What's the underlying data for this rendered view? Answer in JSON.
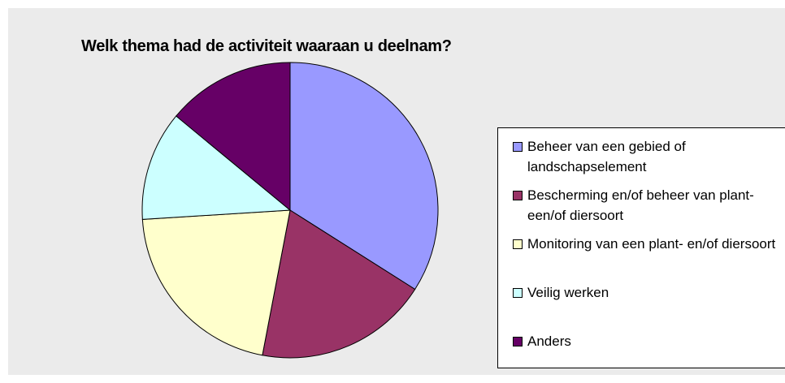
{
  "chart_data": {
    "type": "pie",
    "title": "Welk thema had de activiteit waaraan u deelnam?",
    "categories": [
      "Beheer van een gebied of landschapselement",
      "Bescherming en/of beheer van plant- een/of diersoort",
      "Monitoring van een plant- en/of diersoort",
      "Veilig werken",
      "Anders"
    ],
    "values": [
      34,
      19,
      21,
      12,
      14
    ],
    "colors": [
      "#9999ff",
      "#993366",
      "#ffffcc",
      "#ccffff",
      "#660066"
    ],
    "legend": "right"
  }
}
